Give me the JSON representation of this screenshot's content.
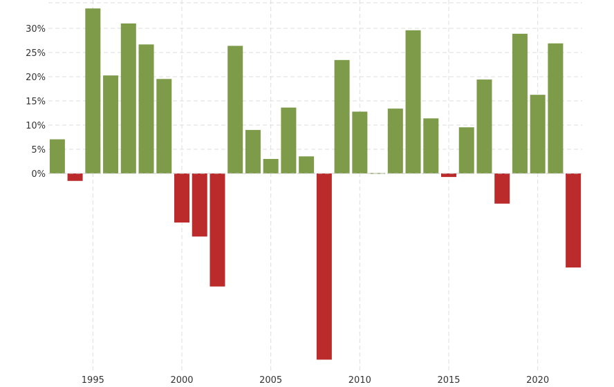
{
  "chart_data": {
    "type": "bar",
    "title": "",
    "xlabel": "",
    "ylabel": "",
    "x": [
      1993,
      1994,
      1995,
      1996,
      1997,
      1998,
      1999,
      2000,
      2001,
      2002,
      2003,
      2004,
      2005,
      2006,
      2007,
      2008,
      2009,
      2010,
      2011,
      2012,
      2013,
      2014,
      2015,
      2016,
      2017,
      2018,
      2019,
      2020,
      2021,
      2022
    ],
    "values": [
      7.06,
      -1.54,
      34.11,
      20.26,
      31.01,
      26.67,
      19.53,
      -10.14,
      -13.04,
      -23.37,
      26.38,
      8.99,
      3.0,
      13.62,
      3.53,
      -38.49,
      23.45,
      12.78,
      0.0,
      13.41,
      29.6,
      11.39,
      -0.73,
      9.54,
      19.42,
      -6.24,
      28.88,
      16.26,
      26.89,
      -19.44
    ],
    "ylim": [
      -39,
      34.5
    ],
    "y_ticks": [
      0,
      5,
      10,
      15,
      20,
      25,
      30
    ],
    "y_tick_labels": [
      "0%",
      "5%",
      "10%",
      "15%",
      "20%",
      "25%",
      "30%"
    ],
    "x_ticks": [
      1995,
      2000,
      2005,
      2010,
      2015,
      2020
    ],
    "x_tick_labels": [
      "1995",
      "2000",
      "2005",
      "2010",
      "2015",
      "2020"
    ],
    "grid": true,
    "legend": "none",
    "colors": {
      "positive": "#7d9b49",
      "negative": "#bc2b2b"
    }
  }
}
